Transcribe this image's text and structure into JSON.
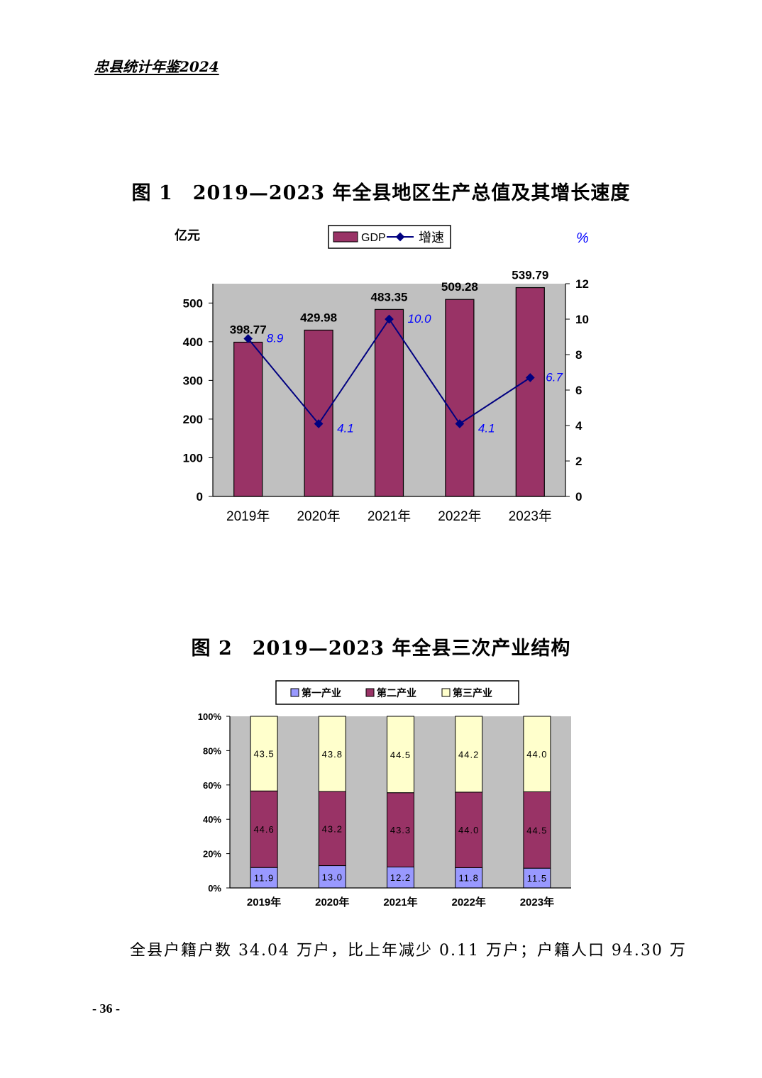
{
  "header": {
    "title": "忠县统计年鉴2024"
  },
  "figure1": {
    "title": "图 1　2019—2023 年全县地区生产总值及其增长速度",
    "left_unit": "亿元",
    "right_unit": "%",
    "legend": [
      "GDP",
      "增速"
    ]
  },
  "figure2": {
    "title": "图 2　2019—2023 年全县三次产业结构",
    "legend": [
      "第一产业",
      "第二产业",
      "第三产业"
    ]
  },
  "chart_data": [
    {
      "type": "bar",
      "categories": [
        "2019年",
        "2020年",
        "2021年",
        "2022年",
        "2023年"
      ],
      "series": [
        {
          "name": "GDP",
          "type": "bar",
          "axis": "left",
          "values": [
            398.77,
            429.98,
            483.35,
            509.28,
            539.79
          ],
          "labels": [
            "398.77",
            "429.98",
            "483.35",
            "509.28",
            "539.79"
          ]
        },
        {
          "name": "增速",
          "type": "line",
          "axis": "right",
          "values": [
            8.9,
            4.1,
            10.0,
            4.1,
            6.7
          ],
          "labels": [
            "8.9",
            "4.1",
            "10.0",
            "4.1",
            "6.7"
          ]
        }
      ],
      "ylim_left": [
        0,
        550
      ],
      "yticks_left": [
        "0",
        "100",
        "200",
        "300",
        "400",
        "500"
      ],
      "ylim_right": [
        0,
        12
      ],
      "yticks_right": [
        "0",
        "2",
        "4",
        "6",
        "8",
        "10",
        "12"
      ],
      "colors": {
        "bar": "#993366",
        "line": "#000080",
        "label_line": "#0000ff",
        "plot_bg": "#c0c0c0"
      },
      "legend_position": "top"
    },
    {
      "type": "bar",
      "stacked": true,
      "percent": true,
      "categories": [
        "2019年",
        "2020年",
        "2021年",
        "2022年",
        "2023年"
      ],
      "series": [
        {
          "name": "第一产业",
          "values": [
            11.9,
            13.0,
            12.2,
            11.8,
            11.5
          ],
          "labels": [
            "11.9",
            "13.0",
            "12.2",
            "11.8",
            "11.5"
          ],
          "color": "#9999ff"
        },
        {
          "name": "第二产业",
          "values": [
            44.6,
            43.2,
            43.3,
            44.0,
            44.5
          ],
          "labels": [
            "44.6",
            "43.2",
            "43.3",
            "44.0",
            "44.5"
          ],
          "color": "#993366"
        },
        {
          "name": "第三产业",
          "values": [
            43.5,
            43.8,
            44.5,
            44.2,
            44.0
          ],
          "labels": [
            "43.5",
            "43.8",
            "44.5",
            "44.2",
            "44.0"
          ],
          "color": "#ffffcc"
        }
      ],
      "ylim": [
        0,
        100
      ],
      "yticks": [
        "0%",
        "20%",
        "40%",
        "60%",
        "80%",
        "100%"
      ],
      "colors": {
        "plot_bg": "#c0c0c0"
      },
      "legend_position": "top"
    }
  ],
  "body": {
    "text": "全县户籍户数 34.04 万户，比上年减少 0.11 万户；户籍人口 94.30 万"
  },
  "footer": {
    "page_number": "- 36 -"
  }
}
